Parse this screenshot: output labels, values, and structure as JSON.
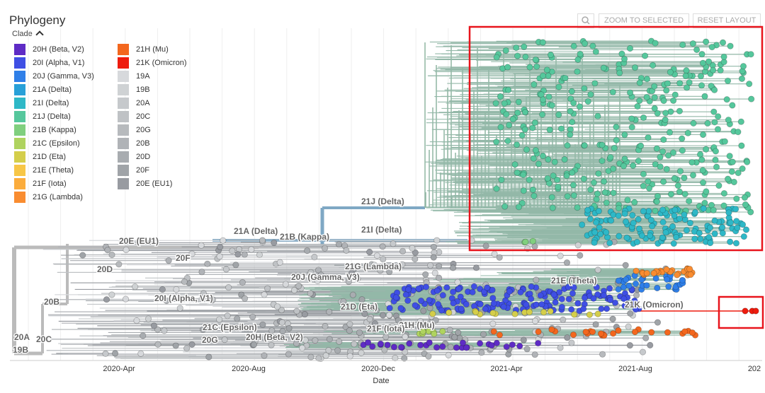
{
  "header": {
    "title": "Phylogeny",
    "legend_toggle": "Clade"
  },
  "toolbar": {
    "zoom_to_selected": "ZOOM TO SELECTED",
    "reset_layout": "RESET LAYOUT"
  },
  "legend": [
    {
      "label": "20H (Beta, V2)",
      "color": "#5e2bc5"
    },
    {
      "label": "20I (Alpha, V1)",
      "color": "#3f4fe4"
    },
    {
      "label": "20J (Gamma, V3)",
      "color": "#2f7fe8"
    },
    {
      "label": "21A (Delta)",
      "color": "#28a0d8"
    },
    {
      "label": "21I (Delta)",
      "color": "#2eb8c7"
    },
    {
      "label": "21J (Delta)",
      "color": "#55c79c"
    },
    {
      "label": "21B (Kappa)",
      "color": "#80cf7e"
    },
    {
      "label": "21C (Epsilon)",
      "color": "#afd35f"
    },
    {
      "label": "21D (Eta)",
      "color": "#d4ce4a"
    },
    {
      "label": "21E (Theta)",
      "color": "#f7c646"
    },
    {
      "label": "21F (Iota)",
      "color": "#fbac3c"
    },
    {
      "label": "21G (Lambda)",
      "color": "#f98c30"
    },
    {
      "label": "21H (Mu)",
      "color": "#f3671e"
    },
    {
      "label": "21K (Omicron)",
      "color": "#ee1c0e"
    },
    {
      "label": "19A",
      "color": "#d7d9dc"
    },
    {
      "label": "19B",
      "color": "#cfd2d4"
    },
    {
      "label": "20A",
      "color": "#c6c9cc"
    },
    {
      "label": "20C",
      "color": "#bfc2c5"
    },
    {
      "label": "20G",
      "color": "#b7babd"
    },
    {
      "label": "20B",
      "color": "#b0b3b7"
    },
    {
      "label": "20D",
      "color": "#a8acb0"
    },
    {
      "label": "20F",
      "color": "#a0a4a8"
    },
    {
      "label": "20E (EU1)",
      "color": "#989ba1"
    }
  ],
  "tree_labels": [
    "21J (Delta)",
    "21A (Delta)",
    "21B (Kappa)",
    "21I (Delta)",
    "20E (EU1)",
    "20F",
    "20D",
    "21G (Lambda)",
    "20J (Gamma, V3)",
    "21E (Theta)",
    "20I (Alpha, V1)",
    "20B",
    "21D (Eta)",
    "21K (Omicron)",
    "21C (Epsilon)",
    "21H (Mu)",
    "21F (Iota)",
    "20A",
    "20C",
    "20G",
    "20H (Beta, V2)",
    "19B"
  ],
  "x_axis": {
    "ticks": [
      "2020-Apr",
      "2020-Aug",
      "2020-Dec",
      "2021-Apr",
      "2021-Aug",
      "202"
    ],
    "title": "Date"
  }
}
